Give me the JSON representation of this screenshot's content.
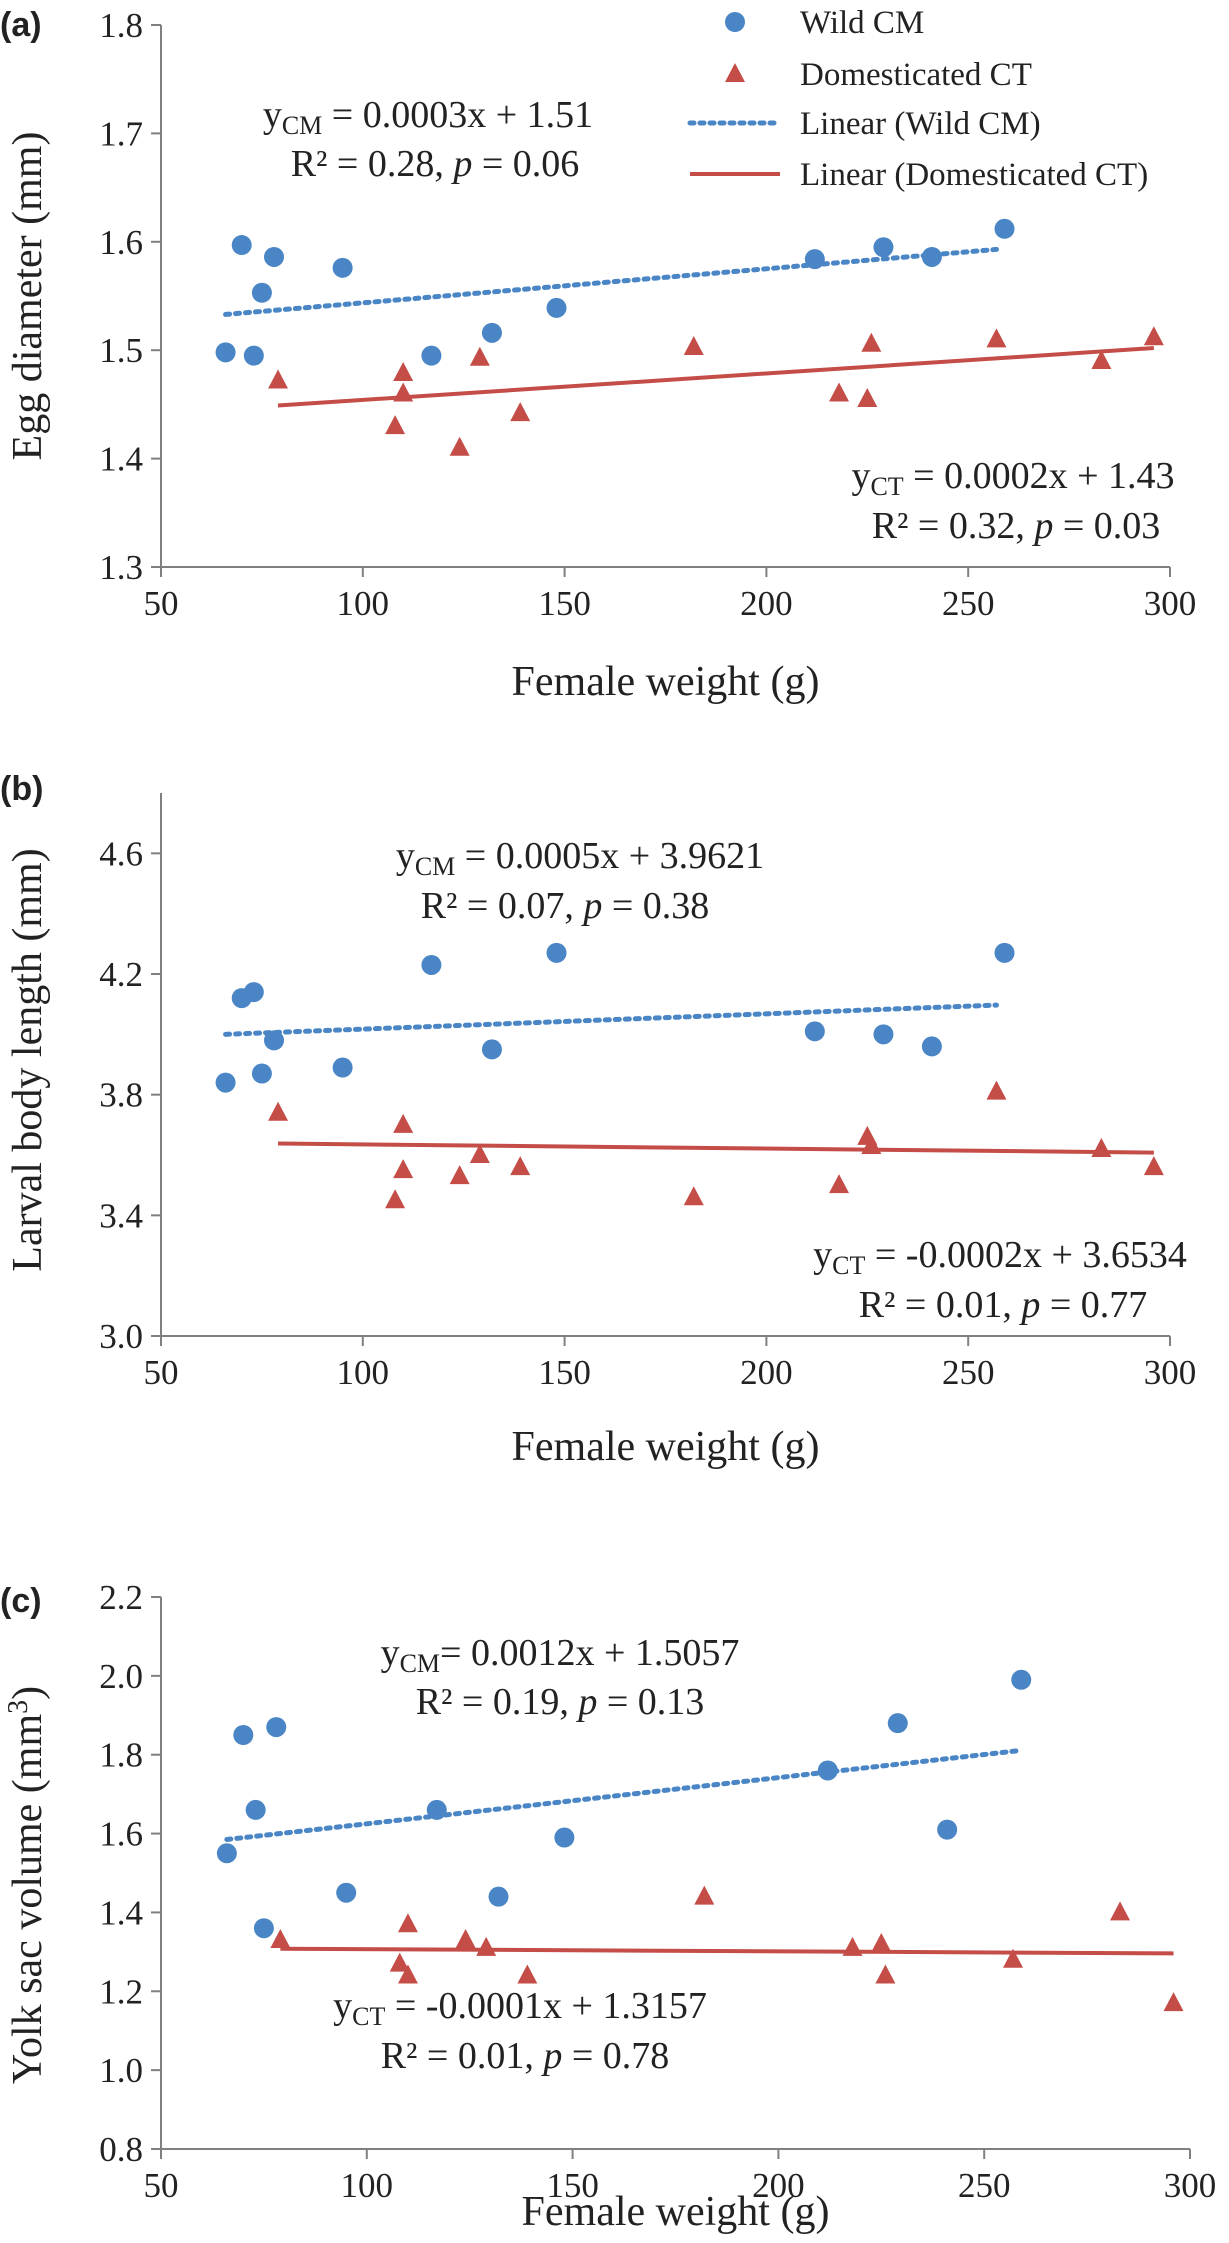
{
  "chart_data": [
    {
      "panel": "(a)",
      "type": "scatter",
      "xlabel": "Female weight (g)",
      "ylabel": "Egg diameter (mm)",
      "xlim": [
        50,
        300
      ],
      "ylim": [
        1.3,
        1.8
      ],
      "xticks": [
        "50",
        "100",
        "150",
        "200",
        "250",
        "300"
      ],
      "yticks": [
        "1.3",
        "1.4",
        "1.5",
        "1.6",
        "1.7",
        "1.8"
      ],
      "legend": {
        "position": "top-right",
        "entries": [
          "Wild CM",
          "Domesticated CT",
          "Linear (Wild CM)",
          "Linear (Domesticated CT)"
        ]
      },
      "series": [
        {
          "name": "Wild CM",
          "x": [
            66,
            70,
            73,
            75,
            78,
            95,
            117,
            132,
            148,
            212,
            229,
            241,
            259
          ],
          "y": [
            1.498,
            1.597,
            1.495,
            1.553,
            1.586,
            1.576,
            1.495,
            1.516,
            1.539,
            1.584,
            1.595,
            1.586,
            1.612
          ]
        },
        {
          "name": "Domesticated CT",
          "x": [
            79,
            108,
            110,
            110,
            124,
            129,
            139,
            182,
            218,
            225,
            226,
            257,
            283,
            296
          ],
          "y": [
            1.472,
            1.43,
            1.46,
            1.479,
            1.41,
            1.493,
            1.442,
            1.503,
            1.46,
            1.455,
            1.506,
            1.51,
            1.49,
            1.512
          ]
        }
      ],
      "trendlines": [
        {
          "name": "Linear (Wild CM)",
          "x": [
            66,
            257
          ],
          "y": [
            1.533,
            1.593
          ]
        },
        {
          "name": "Linear (Domesticated CT)",
          "x": [
            79,
            296
          ],
          "y": [
            1.449,
            1.502
          ]
        }
      ],
      "annotations": {
        "cm_eq": {
          "lhs": "y",
          "sub": "CM",
          "rhs": " = 0.0003x + 1.51"
        },
        "cm_r2": {
          "text": "R² = 0.28, ",
          "p": "p",
          "rest": " = 0.06"
        },
        "ct_eq": {
          "lhs": "y",
          "sub": "CT",
          "rhs": " = 0.0002x + 1.43"
        },
        "ct_r2": {
          "text": "R² = 0.32, ",
          "p": "p",
          "rest": " = 0.03"
        }
      }
    },
    {
      "panel": "(b)",
      "type": "scatter",
      "xlabel": "Female weight (g)",
      "ylabel": "Larval body length (mm)",
      "xlim": [
        50,
        300
      ],
      "ylim": [
        3.0,
        4.8
      ],
      "xticks": [
        "50",
        "100",
        "150",
        "200",
        "250",
        "300"
      ],
      "yticks": [
        "3.0",
        "3.4",
        "3.8",
        "4.2",
        "4.6"
      ],
      "series": [
        {
          "name": "Wild CM",
          "x": [
            66,
            70,
            73,
            75,
            78,
            95,
            117,
            132,
            148,
            212,
            229,
            241,
            259
          ],
          "y": [
            3.84,
            4.12,
            4.14,
            3.87,
            3.98,
            3.89,
            4.23,
            3.95,
            4.27,
            4.01,
            4.0,
            3.96,
            4.27
          ]
        },
        {
          "name": "Domesticated CT",
          "x": [
            79,
            108,
            110,
            110,
            124,
            129,
            139,
            182,
            218,
            225,
            226,
            257,
            283,
            296
          ],
          "y": [
            3.74,
            3.45,
            3.7,
            3.55,
            3.53,
            3.6,
            3.56,
            3.46,
            3.5,
            3.66,
            3.63,
            3.81,
            3.62,
            3.56
          ]
        }
      ],
      "trendlines": [
        {
          "name": "Linear (Wild CM)",
          "x": [
            66,
            257
          ],
          "y": [
            4.0,
            4.097
          ]
        },
        {
          "name": "Linear (Domesticated CT)",
          "x": [
            79,
            296
          ],
          "y": [
            3.638,
            3.608
          ]
        }
      ],
      "annotations": {
        "cm_eq": {
          "lhs": "y",
          "sub": "CM",
          "rhs": " = 0.0005x + 3.9621"
        },
        "cm_r2": {
          "text": "R² = 0.07, ",
          "p": "p",
          "rest": " = 0.38"
        },
        "ct_eq": {
          "lhs": "y",
          "sub": "CT",
          "rhs": " = -0.0002x + 3.6534"
        },
        "ct_r2": {
          "text": "R² = 0.01, ",
          "p": "p",
          "rest": " = 0.77"
        }
      }
    },
    {
      "panel": "(c)",
      "type": "scatter",
      "xlabel": "Female weight (g)",
      "ylabel": "Yolk sac volume (mm",
      "ylabel_sup": "3",
      "ylabel_close": ")",
      "xlim": [
        50,
        300
      ],
      "ylim": [
        0.8,
        2.2
      ],
      "xticks": [
        "50",
        "100",
        "150",
        "200",
        "250",
        "300"
      ],
      "yticks": [
        "0.8",
        "1.0",
        "1.2",
        "1.4",
        "1.6",
        "1.8",
        "2.0",
        "2.2"
      ],
      "series": [
        {
          "name": "Wild CM",
          "x": [
            66,
            70,
            73,
            75,
            78,
            95,
            117,
            132,
            148,
            212,
            229,
            241,
            259
          ],
          "y": [
            1.55,
            1.85,
            1.66,
            1.36,
            1.87,
            1.45,
            1.66,
            1.44,
            1.59,
            1.76,
            1.88,
            1.61,
            1.99
          ]
        },
        {
          "name": "Domesticated CT",
          "x": [
            79,
            108,
            110,
            110,
            124,
            129,
            139,
            182,
            218,
            225,
            226,
            257,
            283,
            296
          ],
          "y": [
            1.33,
            1.27,
            1.37,
            1.24,
            1.33,
            1.31,
            1.24,
            1.44,
            1.31,
            1.32,
            1.24,
            1.28,
            1.4,
            1.17
          ]
        }
      ],
      "trendlines": [
        {
          "name": "Linear (Wild CM)",
          "x": [
            66,
            259
          ],
          "y": [
            1.585,
            1.811
          ]
        },
        {
          "name": "Linear (Domesticated CT)",
          "x": [
            79,
            296
          ],
          "y": [
            1.308,
            1.296
          ]
        }
      ],
      "annotations": {
        "cm_eq": {
          "lhs": "y",
          "sub": "CM",
          "rhs": "= 0.0012x + 1.5057"
        },
        "cm_r2": {
          "text": "R² = 0.19, ",
          "p": "p",
          "rest": " = 0.13"
        },
        "ct_eq": {
          "lhs": "y",
          "sub": "CT",
          "rhs": " = -0.0001x + 1.3157"
        },
        "ct_r2": {
          "text": "R² = 0.01, ",
          "p": "p",
          "rest": " = 0.78"
        }
      }
    }
  ],
  "colors": {
    "wild": "#4a86c5",
    "domesticated": "#c44d48",
    "axis": "#808080",
    "text": "#222222"
  }
}
